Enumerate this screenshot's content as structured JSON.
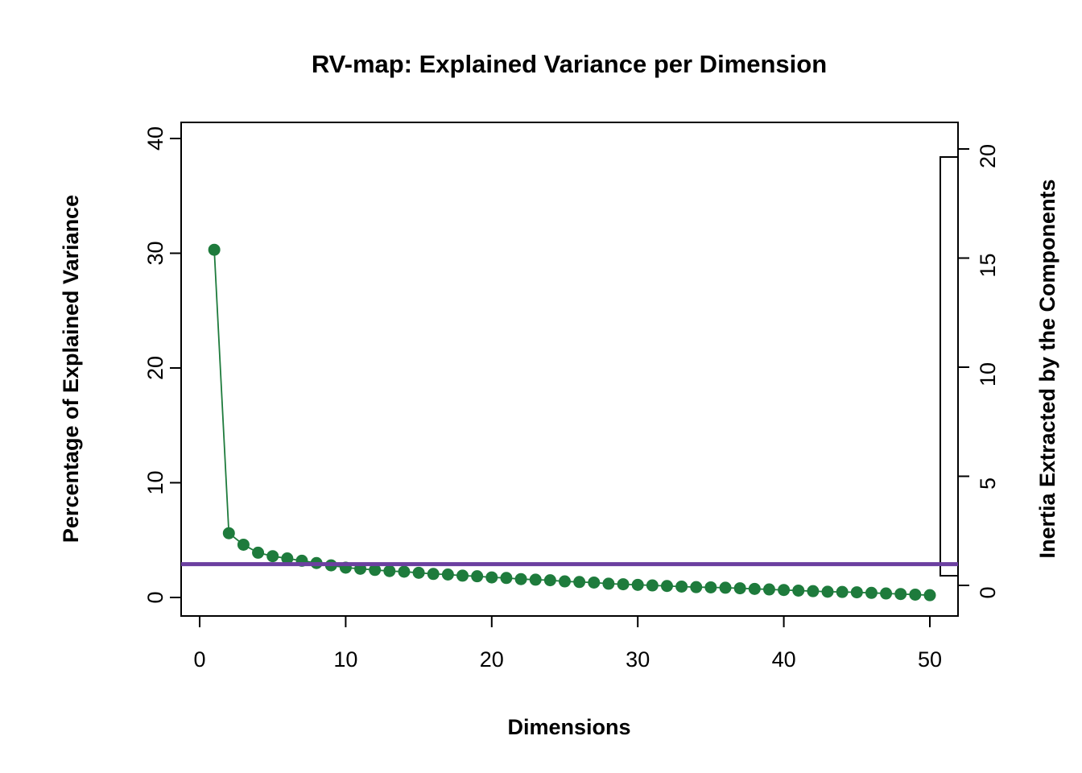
{
  "chart_data": {
    "type": "line",
    "title": "RV-map: Explained Variance per Dimension",
    "xlabel": "Dimensions",
    "ylabel_left": "Percentage of Explained Variance",
    "ylabel_right": "Inertia Extracted by the Components",
    "x": [
      1,
      2,
      3,
      4,
      5,
      6,
      7,
      8,
      9,
      10,
      11,
      12,
      13,
      14,
      15,
      16,
      17,
      18,
      19,
      20,
      21,
      22,
      23,
      24,
      25,
      26,
      27,
      28,
      29,
      30,
      31,
      32,
      33,
      34,
      35,
      36,
      37,
      38,
      39,
      40,
      41,
      42,
      43,
      44,
      45,
      46,
      47,
      48,
      49,
      50
    ],
    "series": [
      {
        "name": "explained-variance-pct",
        "values": [
          30.3,
          5.6,
          4.6,
          3.9,
          3.6,
          3.4,
          3.2,
          3.0,
          2.8,
          2.6,
          2.5,
          2.4,
          2.3,
          2.25,
          2.15,
          2.05,
          2.0,
          1.9,
          1.85,
          1.75,
          1.7,
          1.6,
          1.55,
          1.5,
          1.4,
          1.35,
          1.3,
          1.2,
          1.15,
          1.1,
          1.05,
          1.0,
          0.95,
          0.9,
          0.88,
          0.85,
          0.8,
          0.75,
          0.7,
          0.65,
          0.6,
          0.55,
          0.5,
          0.48,
          0.45,
          0.4,
          0.35,
          0.3,
          0.25,
          0.2
        ]
      }
    ],
    "threshold_pct": 2.9,
    "xlim": [
      0,
      50
    ],
    "ylim_left": [
      0,
      40
    ],
    "ylim_right": [
      0,
      20
    ],
    "x_ticks": [
      0,
      10,
      20,
      30,
      40,
      50
    ],
    "y_ticks_left": [
      0,
      10,
      20,
      30,
      40
    ],
    "y_ticks_right": [
      0,
      5,
      10,
      15,
      20
    ],
    "grid": "off",
    "legend": "none",
    "colors": {
      "series": "#1E7B3C",
      "threshold": "#6B3FA0",
      "axis": "#000000",
      "background": "#FFFFFF"
    }
  }
}
